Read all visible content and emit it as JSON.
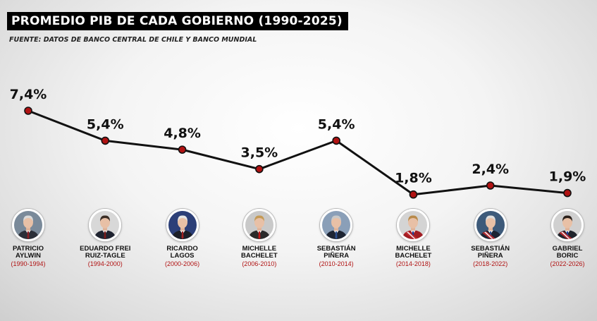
{
  "header": {
    "title": "PROMEDIO PIB DE CADA GOBIERNO (1990-2025)",
    "source": "FUENTE: DATOS DE BANCO CENTRAL DE CHILE Y BANCO MUNDIAL"
  },
  "chart_data": {
    "type": "line",
    "title": "PROMEDIO PIB DE CADA GOBIERNO (1990-2025)",
    "subtitle": "FUENTE: DATOS DE BANCO CENTRAL DE CHILE Y BANCO MUNDIAL",
    "categories": [
      "PATRICIO AYLWIN (1990-1994)",
      "EDUARDO FREI RUIZ-TAGLE (1994-2000)",
      "RICARDO LAGOS (2000-2006)",
      "MICHELLE BACHELET (2006-2010)",
      "SEBASTIÁN PIÑERA (2010-2014)",
      "MICHELLE BACHELET (2014-2018)",
      "SEBASTIÁN PIÑERA (2018-2022)",
      "GABRIEL BORIC (2022-2026)"
    ],
    "values": [
      7.4,
      5.4,
      4.8,
      3.5,
      5.4,
      1.8,
      2.4,
      1.9
    ],
    "labels": [
      "7,4%",
      "5,4%",
      "4,8%",
      "3,5%",
      "5,4%",
      "1,8%",
      "2,4%",
      "1,9%"
    ],
    "line_color": "#111111",
    "marker_color": "#b01212",
    "grid": false,
    "legend": "none"
  },
  "governments": [
    {
      "name": "PATRICIO\nAYLWIN",
      "period": "(1990-1994)",
      "bg": "#7a8a9a",
      "suit": "#2b2f38",
      "tie": "#8a1f24",
      "hair": "#d9d9d9",
      "sash": false
    },
    {
      "name": "EDUARDO FREI\nRUIZ-TAGLE",
      "period": "(1994-2000)",
      "bg": "#d8d8d8",
      "suit": "#1f2330",
      "tie": "#7a1a1a",
      "hair": "#3a2d25",
      "sash": false
    },
    {
      "name": "RICARDO\nLAGOS",
      "period": "(2000-2006)",
      "bg": "#2c3f78",
      "suit": "#1c1f28",
      "tie": "#a02020",
      "hair": "#e6e6e6",
      "sash": false
    },
    {
      "name": "MICHELLE\nBACHELET",
      "period": "(2006-2010)",
      "bg": "#c9c9c9",
      "suit": "#2a2a2a",
      "tie": "#c01818",
      "hair": "#c49a55",
      "sash": false
    },
    {
      "name": "SEBASTIÁN\nPIÑERA",
      "period": "(2010-2014)",
      "bg": "#8a9fb8",
      "suit": "#1d2433",
      "tie": "#2c4f90",
      "hair": "#c8c8c8",
      "sash": false
    },
    {
      "name": "MICHELLE\nBACHELET",
      "period": "(2014-2018)",
      "bg": "#d4d4d4",
      "suit": "#a11c22",
      "tie": "#1e3f9a",
      "hair": "#b88a4a",
      "sash": true
    },
    {
      "name": "SEBASTIÁN\nPIÑERA",
      "period": "(2018-2022)",
      "bg": "#3d5a7a",
      "suit": "#1d2433",
      "tie": "#2c4f90",
      "hair": "#dcdcdc",
      "sash": true
    },
    {
      "name": "GABRIEL\nBORIC",
      "period": "(2022-2026)",
      "bg": "#d0d0d0",
      "suit": "#20242c",
      "tie": "#1e3f9a",
      "hair": "#2a201a",
      "sash": true
    }
  ]
}
